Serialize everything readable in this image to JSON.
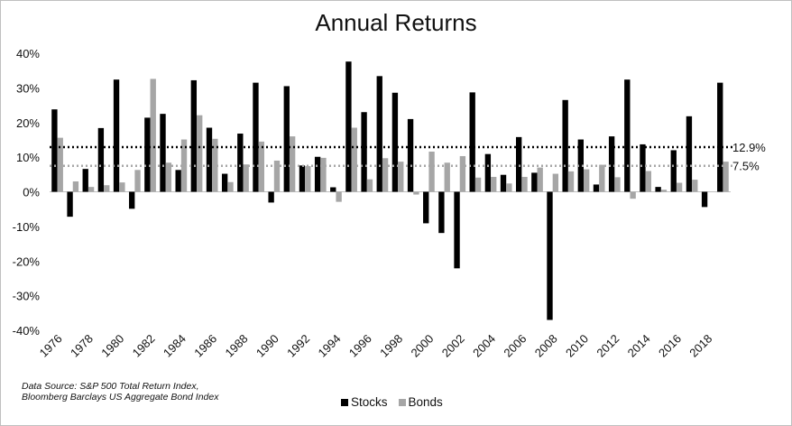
{
  "chart_data": {
    "type": "bar",
    "title": "Annual Returns",
    "categories": [
      "1976",
      "1977",
      "1978",
      "1979",
      "1980",
      "1981",
      "1982",
      "1983",
      "1984",
      "1985",
      "1986",
      "1987",
      "1988",
      "1989",
      "1990",
      "1991",
      "1992",
      "1993",
      "1994",
      "1995",
      "1996",
      "1997",
      "1998",
      "1999",
      "2000",
      "2001",
      "2002",
      "2003",
      "2004",
      "2005",
      "2006",
      "2007",
      "2008",
      "2009",
      "2010",
      "2011",
      "2012",
      "2013",
      "2014",
      "2015",
      "2016",
      "2017",
      "2018",
      "2019"
    ],
    "x_tick_labels": [
      "1976",
      "1978",
      "1980",
      "1982",
      "1984",
      "1986",
      "1988",
      "1990",
      "1992",
      "1994",
      "1996",
      "1998",
      "2000",
      "2002",
      "2004",
      "2006",
      "2008",
      "2010",
      "2012",
      "2014",
      "2016",
      "2018"
    ],
    "series": [
      {
        "name": "Stocks",
        "color": "#000000",
        "values": [
          23.8,
          -7.2,
          6.6,
          18.4,
          32.4,
          -4.9,
          21.4,
          22.5,
          6.3,
          32.2,
          18.5,
          5.2,
          16.8,
          31.5,
          -3.1,
          30.5,
          7.6,
          10.1,
          1.3,
          37.6,
          23.0,
          33.4,
          28.6,
          21.0,
          -9.1,
          -11.9,
          -22.1,
          28.7,
          10.9,
          4.9,
          15.8,
          5.5,
          -37.0,
          26.5,
          15.1,
          2.1,
          16.0,
          32.4,
          13.7,
          1.4,
          12.0,
          21.8,
          -4.4,
          31.5
        ]
      },
      {
        "name": "Bonds",
        "color": "#a6a6a6",
        "values": [
          15.6,
          3.0,
          1.4,
          1.9,
          2.7,
          6.3,
          32.6,
          8.4,
          15.1,
          22.1,
          15.3,
          2.8,
          7.9,
          14.5,
          9.0,
          16.0,
          7.4,
          9.8,
          -2.9,
          18.5,
          3.6,
          9.7,
          8.7,
          -0.8,
          11.6,
          8.4,
          10.3,
          4.1,
          4.3,
          2.4,
          4.3,
          7.0,
          5.2,
          5.9,
          6.5,
          7.8,
          4.2,
          -2.0,
          6.0,
          0.6,
          2.6,
          3.5,
          0.0,
          8.7
        ]
      }
    ],
    "reference_lines": [
      {
        "label": "12.9%",
        "value": 12.9,
        "color": "#000000",
        "style": "dotted"
      },
      {
        "label": "7.5%",
        "value": 7.5,
        "color": "#a6a6a6",
        "style": "dotted"
      }
    ],
    "ylim": [
      -40,
      40
    ],
    "y_ticks": [
      40,
      30,
      20,
      10,
      0,
      -10,
      -20,
      -30,
      -40
    ],
    "y_tick_format": "percent",
    "xlabel": "",
    "ylabel": "",
    "grid": false,
    "legend_position": "bottom"
  },
  "source_note": {
    "line1": "Data Source: S&P 500 Total Return Index,",
    "line2": "Bloomberg Barclays US Aggregate Bond Index"
  },
  "legend": {
    "stocks_label": "Stocks",
    "bonds_label": "Bonds"
  }
}
